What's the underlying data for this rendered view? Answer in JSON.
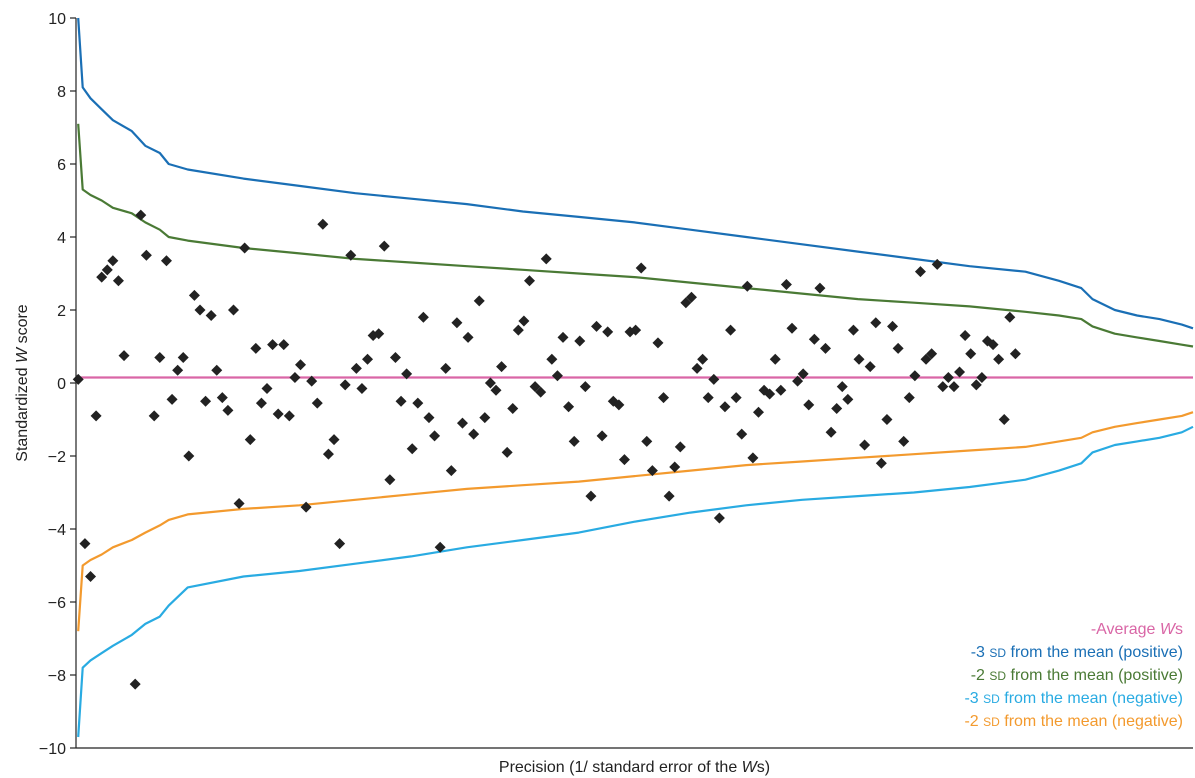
{
  "chart_data": {
    "type": "scatter",
    "title": "",
    "xlabel": {
      "prefix": "Precision (1/ standard error of the ",
      "italic": "W",
      "suffix": "s)"
    },
    "ylabel": {
      "prefix": "Standardized ",
      "italic": "W",
      "suffix": " score"
    },
    "ylim": [
      -10,
      10
    ],
    "y_ticks": [
      "−10",
      "−8",
      "−6",
      "−4",
      "−2",
      "0",
      "2",
      "4",
      "6",
      "8",
      "10"
    ],
    "y_tick_values": [
      -10,
      -8,
      -6,
      -4,
      -2,
      0,
      2,
      4,
      6,
      8,
      10
    ],
    "xlim": [
      0,
      100
    ],
    "x_ticks_shown": false,
    "grid": false,
    "legend_position": "bottom-right",
    "legend": [
      {
        "id": "avg",
        "color": "#d966a6",
        "parts": [
          {
            "t": "-Average "
          },
          {
            "t": "W",
            "i": true
          },
          {
            "t": "s"
          }
        ]
      },
      {
        "id": "pos3",
        "color": "#1a6fb5",
        "parts": [
          {
            "t": "-3 "
          },
          {
            "t": "SD",
            "sc": true
          },
          {
            "t": " from the mean (positive)"
          }
        ]
      },
      {
        "id": "pos2",
        "color": "#4a7a35",
        "parts": [
          {
            "t": "-2 "
          },
          {
            "t": "SD",
            "sc": true
          },
          {
            "t": " from the mean (positive)"
          }
        ]
      },
      {
        "id": "neg3",
        "color": "#29abe2",
        "parts": [
          {
            "t": "-3 "
          },
          {
            "t": "SD",
            "sc": true
          },
          {
            "t": " from the mean (negative)"
          }
        ]
      },
      {
        "id": "neg2",
        "color": "#f39a2e",
        "parts": [
          {
            "t": "-2 "
          },
          {
            "t": "SD",
            "sc": true
          },
          {
            "t": " from the mean (negative)"
          }
        ]
      }
    ],
    "lines": [
      {
        "id": "avg",
        "color": "#d966a6",
        "points": [
          [
            0,
            0.15
          ],
          [
            100,
            0.15
          ]
        ]
      },
      {
        "id": "pos3",
        "color": "#1a6fb5",
        "points": [
          [
            0.2,
            10
          ],
          [
            0.6,
            8.1
          ],
          [
            1.3,
            7.8
          ],
          [
            2.3,
            7.5
          ],
          [
            3.3,
            7.2
          ],
          [
            5.0,
            6.9
          ],
          [
            6.2,
            6.5
          ],
          [
            7.5,
            6.3
          ],
          [
            8.3,
            6.0
          ],
          [
            10,
            5.85
          ],
          [
            15,
            5.6
          ],
          [
            20,
            5.4
          ],
          [
            25,
            5.2
          ],
          [
            30,
            5.05
          ],
          [
            35,
            4.9
          ],
          [
            40,
            4.7
          ],
          [
            45,
            4.55
          ],
          [
            50,
            4.4
          ],
          [
            55,
            4.2
          ],
          [
            60,
            4.0
          ],
          [
            65,
            3.8
          ],
          [
            70,
            3.6
          ],
          [
            75,
            3.4
          ],
          [
            80,
            3.2
          ],
          [
            85,
            3.05
          ],
          [
            88,
            2.8
          ],
          [
            90,
            2.6
          ],
          [
            91,
            2.3
          ],
          [
            93,
            2.0
          ],
          [
            95,
            1.85
          ],
          [
            97,
            1.75
          ],
          [
            99,
            1.6
          ],
          [
            100,
            1.5
          ]
        ]
      },
      {
        "id": "pos2",
        "color": "#4a7a35",
        "points": [
          [
            0.2,
            7.1
          ],
          [
            0.6,
            5.3
          ],
          [
            1.3,
            5.15
          ],
          [
            2.3,
            5.0
          ],
          [
            3.3,
            4.8
          ],
          [
            5.0,
            4.65
          ],
          [
            6.2,
            4.4
          ],
          [
            7.5,
            4.2
          ],
          [
            8.3,
            4.0
          ],
          [
            10,
            3.9
          ],
          [
            15,
            3.7
          ],
          [
            20,
            3.55
          ],
          [
            25,
            3.4
          ],
          [
            30,
            3.3
          ],
          [
            35,
            3.2
          ],
          [
            40,
            3.1
          ],
          [
            45,
            3.0
          ],
          [
            50,
            2.9
          ],
          [
            55,
            2.75
          ],
          [
            60,
            2.6
          ],
          [
            65,
            2.45
          ],
          [
            70,
            2.3
          ],
          [
            75,
            2.2
          ],
          [
            80,
            2.1
          ],
          [
            85,
            1.95
          ],
          [
            88,
            1.85
          ],
          [
            90,
            1.75
          ],
          [
            91,
            1.55
          ],
          [
            93,
            1.35
          ],
          [
            95,
            1.25
          ],
          [
            97,
            1.15
          ],
          [
            99,
            1.05
          ],
          [
            100,
            1.0
          ]
        ]
      },
      {
        "id": "neg3",
        "color": "#29abe2",
        "points": [
          [
            0.2,
            -9.7
          ],
          [
            0.6,
            -7.8
          ],
          [
            1.3,
            -7.6
          ],
          [
            2.3,
            -7.4
          ],
          [
            3.3,
            -7.2
          ],
          [
            5.0,
            -6.9
          ],
          [
            6.2,
            -6.6
          ],
          [
            7.5,
            -6.4
          ],
          [
            8.3,
            -6.1
          ],
          [
            10,
            -5.6
          ],
          [
            15,
            -5.3
          ],
          [
            20,
            -5.15
          ],
          [
            25,
            -4.95
          ],
          [
            30,
            -4.75
          ],
          [
            35,
            -4.5
          ],
          [
            40,
            -4.3
          ],
          [
            45,
            -4.1
          ],
          [
            50,
            -3.8
          ],
          [
            55,
            -3.55
          ],
          [
            60,
            -3.35
          ],
          [
            65,
            -3.2
          ],
          [
            70,
            -3.1
          ],
          [
            75,
            -3.0
          ],
          [
            80,
            -2.85
          ],
          [
            85,
            -2.65
          ],
          [
            88,
            -2.4
          ],
          [
            90,
            -2.2
          ],
          [
            91,
            -1.9
          ],
          [
            93,
            -1.7
          ],
          [
            95,
            -1.6
          ],
          [
            97,
            -1.5
          ],
          [
            99,
            -1.35
          ],
          [
            100,
            -1.2
          ]
        ]
      },
      {
        "id": "neg2",
        "color": "#f39a2e",
        "points": [
          [
            0.2,
            -6.8
          ],
          [
            0.6,
            -5.0
          ],
          [
            1.3,
            -4.85
          ],
          [
            2.3,
            -4.7
          ],
          [
            3.3,
            -4.5
          ],
          [
            5.0,
            -4.3
          ],
          [
            6.2,
            -4.1
          ],
          [
            7.5,
            -3.9
          ],
          [
            8.3,
            -3.75
          ],
          [
            10,
            -3.6
          ],
          [
            15,
            -3.45
          ],
          [
            20,
            -3.35
          ],
          [
            25,
            -3.2
          ],
          [
            30,
            -3.05
          ],
          [
            35,
            -2.9
          ],
          [
            40,
            -2.8
          ],
          [
            45,
            -2.7
          ],
          [
            50,
            -2.55
          ],
          [
            55,
            -2.4
          ],
          [
            60,
            -2.25
          ],
          [
            65,
            -2.15
          ],
          [
            70,
            -2.05
          ],
          [
            75,
            -1.95
          ],
          [
            80,
            -1.85
          ],
          [
            85,
            -1.75
          ],
          [
            88,
            -1.6
          ],
          [
            90,
            -1.5
          ],
          [
            91,
            -1.35
          ],
          [
            93,
            -1.2
          ],
          [
            95,
            -1.1
          ],
          [
            97,
            -1.0
          ],
          [
            99,
            -0.9
          ],
          [
            100,
            -0.8
          ]
        ]
      }
    ],
    "points": [
      [
        0.2,
        0.1
      ],
      [
        0.8,
        -4.4
      ],
      [
        1.3,
        -5.3
      ],
      [
        1.8,
        -0.9
      ],
      [
        2.3,
        2.9
      ],
      [
        2.8,
        3.1
      ],
      [
        3.3,
        3.35
      ],
      [
        3.8,
        2.8
      ],
      [
        4.3,
        0.75
      ],
      [
        5.3,
        -8.25
      ],
      [
        5.8,
        4.6
      ],
      [
        6.3,
        3.5
      ],
      [
        7.0,
        -0.9
      ],
      [
        7.5,
        0.7
      ],
      [
        8.1,
        3.35
      ],
      [
        8.6,
        -0.45
      ],
      [
        9.1,
        0.35
      ],
      [
        9.6,
        0.7
      ],
      [
        10.1,
        -2.0
      ],
      [
        10.6,
        2.4
      ],
      [
        11.1,
        2.0
      ],
      [
        11.6,
        -0.5
      ],
      [
        12.1,
        1.85
      ],
      [
        12.6,
        0.35
      ],
      [
        13.1,
        -0.4
      ],
      [
        13.6,
        -0.75
      ],
      [
        14.1,
        2.0
      ],
      [
        14.6,
        -3.3
      ],
      [
        15.1,
        3.7
      ],
      [
        15.6,
        -1.55
      ],
      [
        16.1,
        0.95
      ],
      [
        16.6,
        -0.55
      ],
      [
        17.1,
        -0.15
      ],
      [
        17.6,
        1.05
      ],
      [
        18.1,
        -0.85
      ],
      [
        18.6,
        1.05
      ],
      [
        19.1,
        -0.9
      ],
      [
        19.6,
        0.15
      ],
      [
        20.1,
        0.5
      ],
      [
        20.6,
        -3.4
      ],
      [
        21.1,
        0.05
      ],
      [
        21.6,
        -0.55
      ],
      [
        22.1,
        4.35
      ],
      [
        22.6,
        -1.95
      ],
      [
        23.1,
        -1.55
      ],
      [
        23.6,
        -4.4
      ],
      [
        24.1,
        -0.05
      ],
      [
        24.6,
        3.5
      ],
      [
        25.1,
        0.4
      ],
      [
        25.6,
        -0.15
      ],
      [
        26.1,
        0.65
      ],
      [
        26.6,
        1.3
      ],
      [
        27.1,
        1.35
      ],
      [
        27.6,
        3.75
      ],
      [
        28.1,
        -2.65
      ],
      [
        28.6,
        0.7
      ],
      [
        29.1,
        -0.5
      ],
      [
        29.6,
        0.25
      ],
      [
        30.1,
        -1.8
      ],
      [
        30.6,
        -0.55
      ],
      [
        31.1,
        1.8
      ],
      [
        31.6,
        -0.95
      ],
      [
        32.1,
        -1.45
      ],
      [
        32.6,
        -4.5
      ],
      [
        33.1,
        0.4
      ],
      [
        33.6,
        -2.4
      ],
      [
        34.1,
        1.65
      ],
      [
        34.6,
        -1.1
      ],
      [
        35.1,
        1.25
      ],
      [
        35.6,
        -1.4
      ],
      [
        36.1,
        2.25
      ],
      [
        36.6,
        -0.95
      ],
      [
        37.1,
        0.0
      ],
      [
        37.6,
        -0.2
      ],
      [
        38.1,
        0.45
      ],
      [
        38.6,
        -1.9
      ],
      [
        39.1,
        -0.7
      ],
      [
        39.6,
        1.45
      ],
      [
        40.1,
        1.7
      ],
      [
        40.6,
        2.8
      ],
      [
        41.1,
        -0.1
      ],
      [
        41.6,
        -0.25
      ],
      [
        42.1,
        3.4
      ],
      [
        42.6,
        0.65
      ],
      [
        43.1,
        0.2
      ],
      [
        43.6,
        1.25
      ],
      [
        44.1,
        -0.65
      ],
      [
        44.6,
        -1.6
      ],
      [
        45.1,
        1.15
      ],
      [
        45.6,
        -0.1
      ],
      [
        46.1,
        -3.1
      ],
      [
        46.6,
        1.55
      ],
      [
        47.1,
        -1.45
      ],
      [
        47.6,
        1.4
      ],
      [
        48.1,
        -0.5
      ],
      [
        48.6,
        -0.6
      ],
      [
        49.1,
        -2.1
      ],
      [
        49.6,
        1.4
      ],
      [
        50.1,
        1.45
      ],
      [
        50.6,
        3.15
      ],
      [
        51.1,
        -1.6
      ],
      [
        51.6,
        -2.4
      ],
      [
        52.1,
        1.1
      ],
      [
        52.6,
        -0.4
      ],
      [
        53.1,
        -3.1
      ],
      [
        53.6,
        -2.3
      ],
      [
        54.1,
        -1.75
      ],
      [
        54.6,
        2.2
      ],
      [
        55.1,
        2.35
      ],
      [
        55.6,
        0.4
      ],
      [
        56.1,
        0.65
      ],
      [
        56.6,
        -0.4
      ],
      [
        57.1,
        0.1
      ],
      [
        57.6,
        -3.7
      ],
      [
        58.1,
        -0.65
      ],
      [
        58.6,
        1.45
      ],
      [
        59.1,
        -0.4
      ],
      [
        59.6,
        -1.4
      ],
      [
        60.1,
        2.65
      ],
      [
        60.6,
        -2.05
      ],
      [
        61.1,
        -0.8
      ],
      [
        61.6,
        -0.2
      ],
      [
        62.1,
        -0.3
      ],
      [
        62.6,
        0.65
      ],
      [
        63.1,
        -0.2
      ],
      [
        63.6,
        2.7
      ],
      [
        64.1,
        1.5
      ],
      [
        64.6,
        0.05
      ],
      [
        65.1,
        0.25
      ],
      [
        65.6,
        -0.6
      ],
      [
        66.1,
        1.2
      ],
      [
        66.6,
        2.6
      ],
      [
        67.1,
        0.95
      ],
      [
        67.6,
        -1.35
      ],
      [
        68.1,
        -0.7
      ],
      [
        68.6,
        -0.1
      ],
      [
        69.1,
        -0.45
      ],
      [
        69.6,
        1.45
      ],
      [
        70.1,
        0.65
      ],
      [
        70.6,
        -1.7
      ],
      [
        71.1,
        0.45
      ],
      [
        71.6,
        1.65
      ],
      [
        72.1,
        -2.2
      ],
      [
        72.6,
        -1.0
      ],
      [
        73.1,
        1.55
      ],
      [
        73.6,
        0.95
      ],
      [
        74.1,
        -1.6
      ],
      [
        74.6,
        -0.4
      ],
      [
        75.1,
        0.2
      ],
      [
        75.6,
        3.05
      ],
      [
        76.1,
        0.65
      ],
      [
        76.6,
        0.8
      ],
      [
        77.1,
        3.25
      ],
      [
        77.6,
        -0.1
      ],
      [
        78.1,
        0.15
      ],
      [
        78.6,
        -0.1
      ],
      [
        79.1,
        0.3
      ],
      [
        79.6,
        1.3
      ],
      [
        80.1,
        0.8
      ],
      [
        80.6,
        -0.05
      ],
      [
        81.1,
        0.15
      ],
      [
        81.6,
        1.15
      ],
      [
        82.1,
        1.05
      ],
      [
        82.6,
        0.65
      ],
      [
        83.1,
        -1.0
      ],
      [
        83.6,
        1.8
      ],
      [
        84.1,
        0.8
      ]
    ],
    "points_note_hidden": true
  }
}
